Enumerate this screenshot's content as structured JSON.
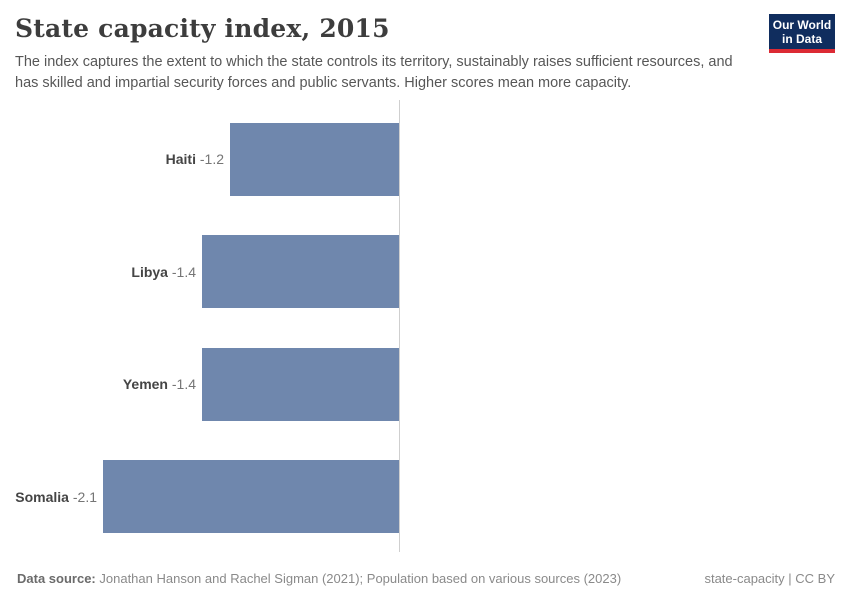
{
  "header": {
    "title": "State capacity index, 2015",
    "subtitle": "The index captures the extent to which the state controls its territory, sustainably raises sufficient resources, and has skilled and impartial security forces and public servants. Higher scores mean more capacity.",
    "logo": {
      "line1": "Our World",
      "line2": "in Data"
    }
  },
  "chart_data": {
    "type": "bar",
    "orientation": "horizontal",
    "title": "State capacity index, 2015",
    "categories": [
      "Haiti",
      "Libya",
      "Yemen",
      "Somalia"
    ],
    "values": [
      -1.2,
      -1.4,
      -1.4,
      -2.1
    ],
    "value_labels": [
      "-1.2",
      "-1.4",
      "-1.4",
      "-2.1"
    ],
    "series_name": "State capacity index",
    "xlim": [
      -2.85,
      0
    ],
    "grid": false,
    "legend": "none",
    "bar_color": "#6f87ad",
    "axis_color": "#cfcfcf"
  },
  "footer": {
    "datasource_label": "Data source:",
    "datasource_text": "Jonathan Hanson and Rachel Sigman (2021); Population based on various sources (2023)",
    "license_text": "state-capacity | CC BY"
  },
  "colors": {
    "logo_navy": "#102d5e",
    "logo_red": "#dc2a34",
    "title_text": "#3d3d3d",
    "subtitle_text": "#575757"
  }
}
